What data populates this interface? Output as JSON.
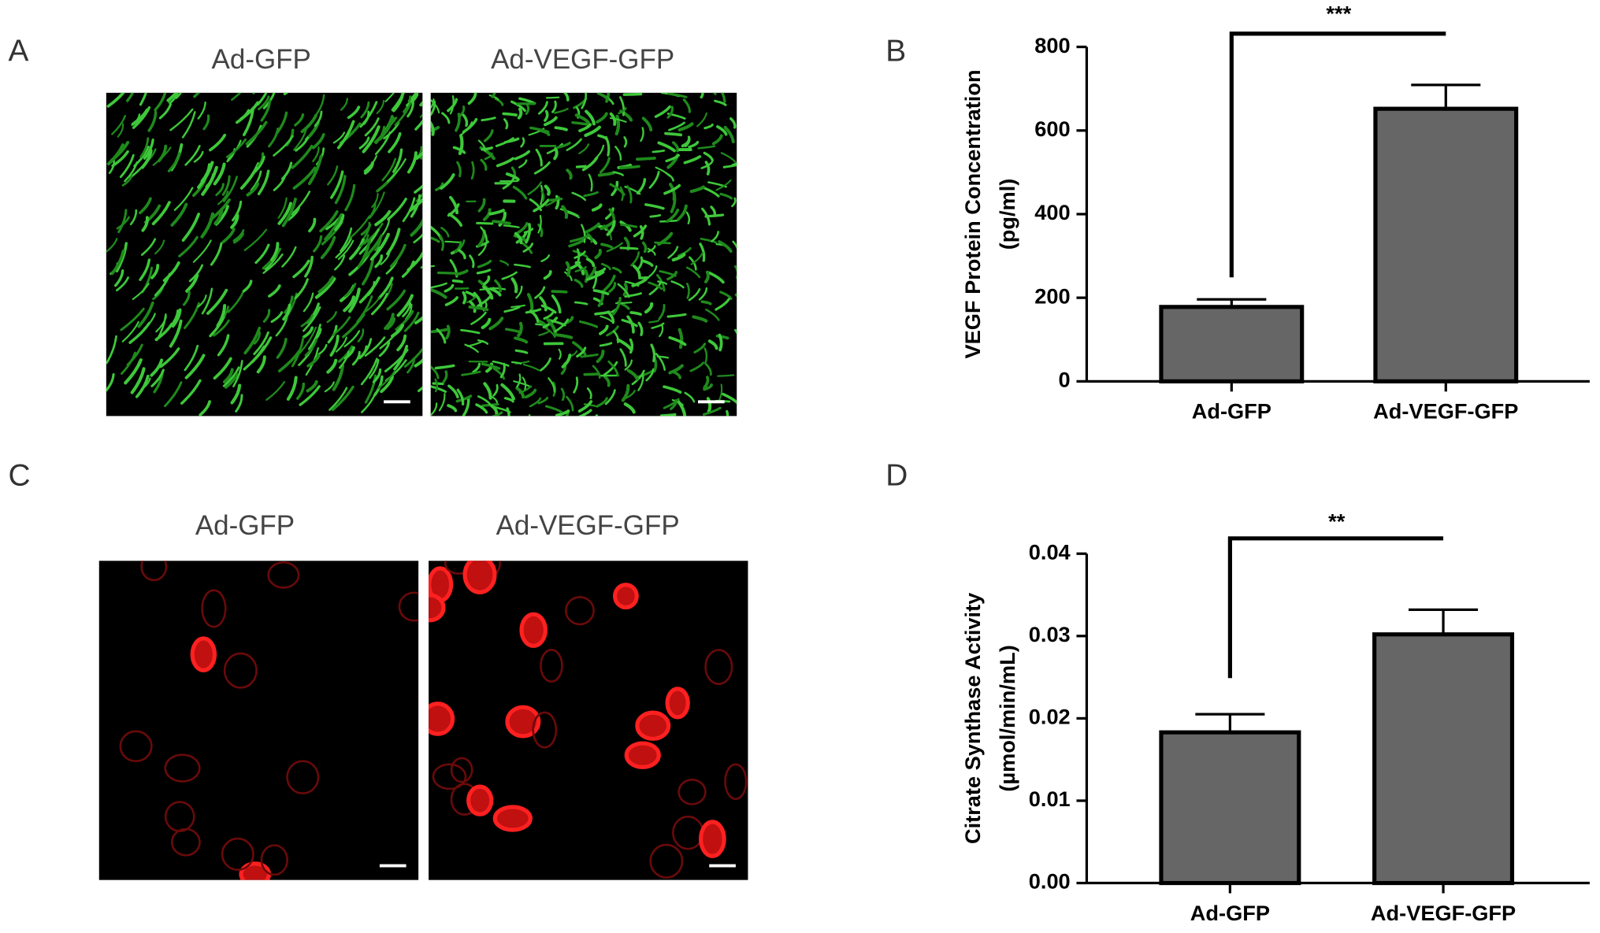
{
  "panels": [
    {
      "label": "A",
      "titles": [
        "Ad-GFP",
        "Ad-VEGF-GFP"
      ]
    },
    {
      "label": "C",
      "titles": [
        "Ad-GFP",
        "Ad-VEGF-GFP"
      ]
    }
  ],
  "chart_data": [
    {
      "type": "bar",
      "panel_label": "B",
      "y_label": [
        "VEGF Protein Concentration",
        "(pg/ml)"
      ],
      "categories": [
        "Ad-GFP",
        "Ad-VEGF-GFP"
      ],
      "values": [
        178,
        652
      ],
      "errors": [
        18,
        57
      ],
      "color": "#666666",
      "ylim": [
        0,
        800
      ],
      "yticks": [
        0,
        200,
        400,
        600,
        800
      ],
      "significance": "***"
    },
    {
      "type": "bar",
      "panel_label": "D",
      "y_label": [
        "Citrate Synthase Activity",
        "(µmol/min/mL)"
      ],
      "categories": [
        "Ad-GFP",
        "Ad-VEGF-GFP"
      ],
      "values": [
        0.0183,
        0.0302
      ],
      "errors": [
        0.0022,
        0.003
      ],
      "color": "#666666",
      "ylim": [
        0,
        0.04
      ],
      "yticks": [
        {
          "value": 0,
          "label": "0.00"
        },
        {
          "value": 0.01,
          "label": "0.01"
        },
        {
          "value": 0.02,
          "label": "0.02"
        },
        {
          "value": 0.03,
          "label": "0.03"
        },
        {
          "value": 0.04,
          "label": "0.04"
        }
      ],
      "significance": "**"
    }
  ]
}
